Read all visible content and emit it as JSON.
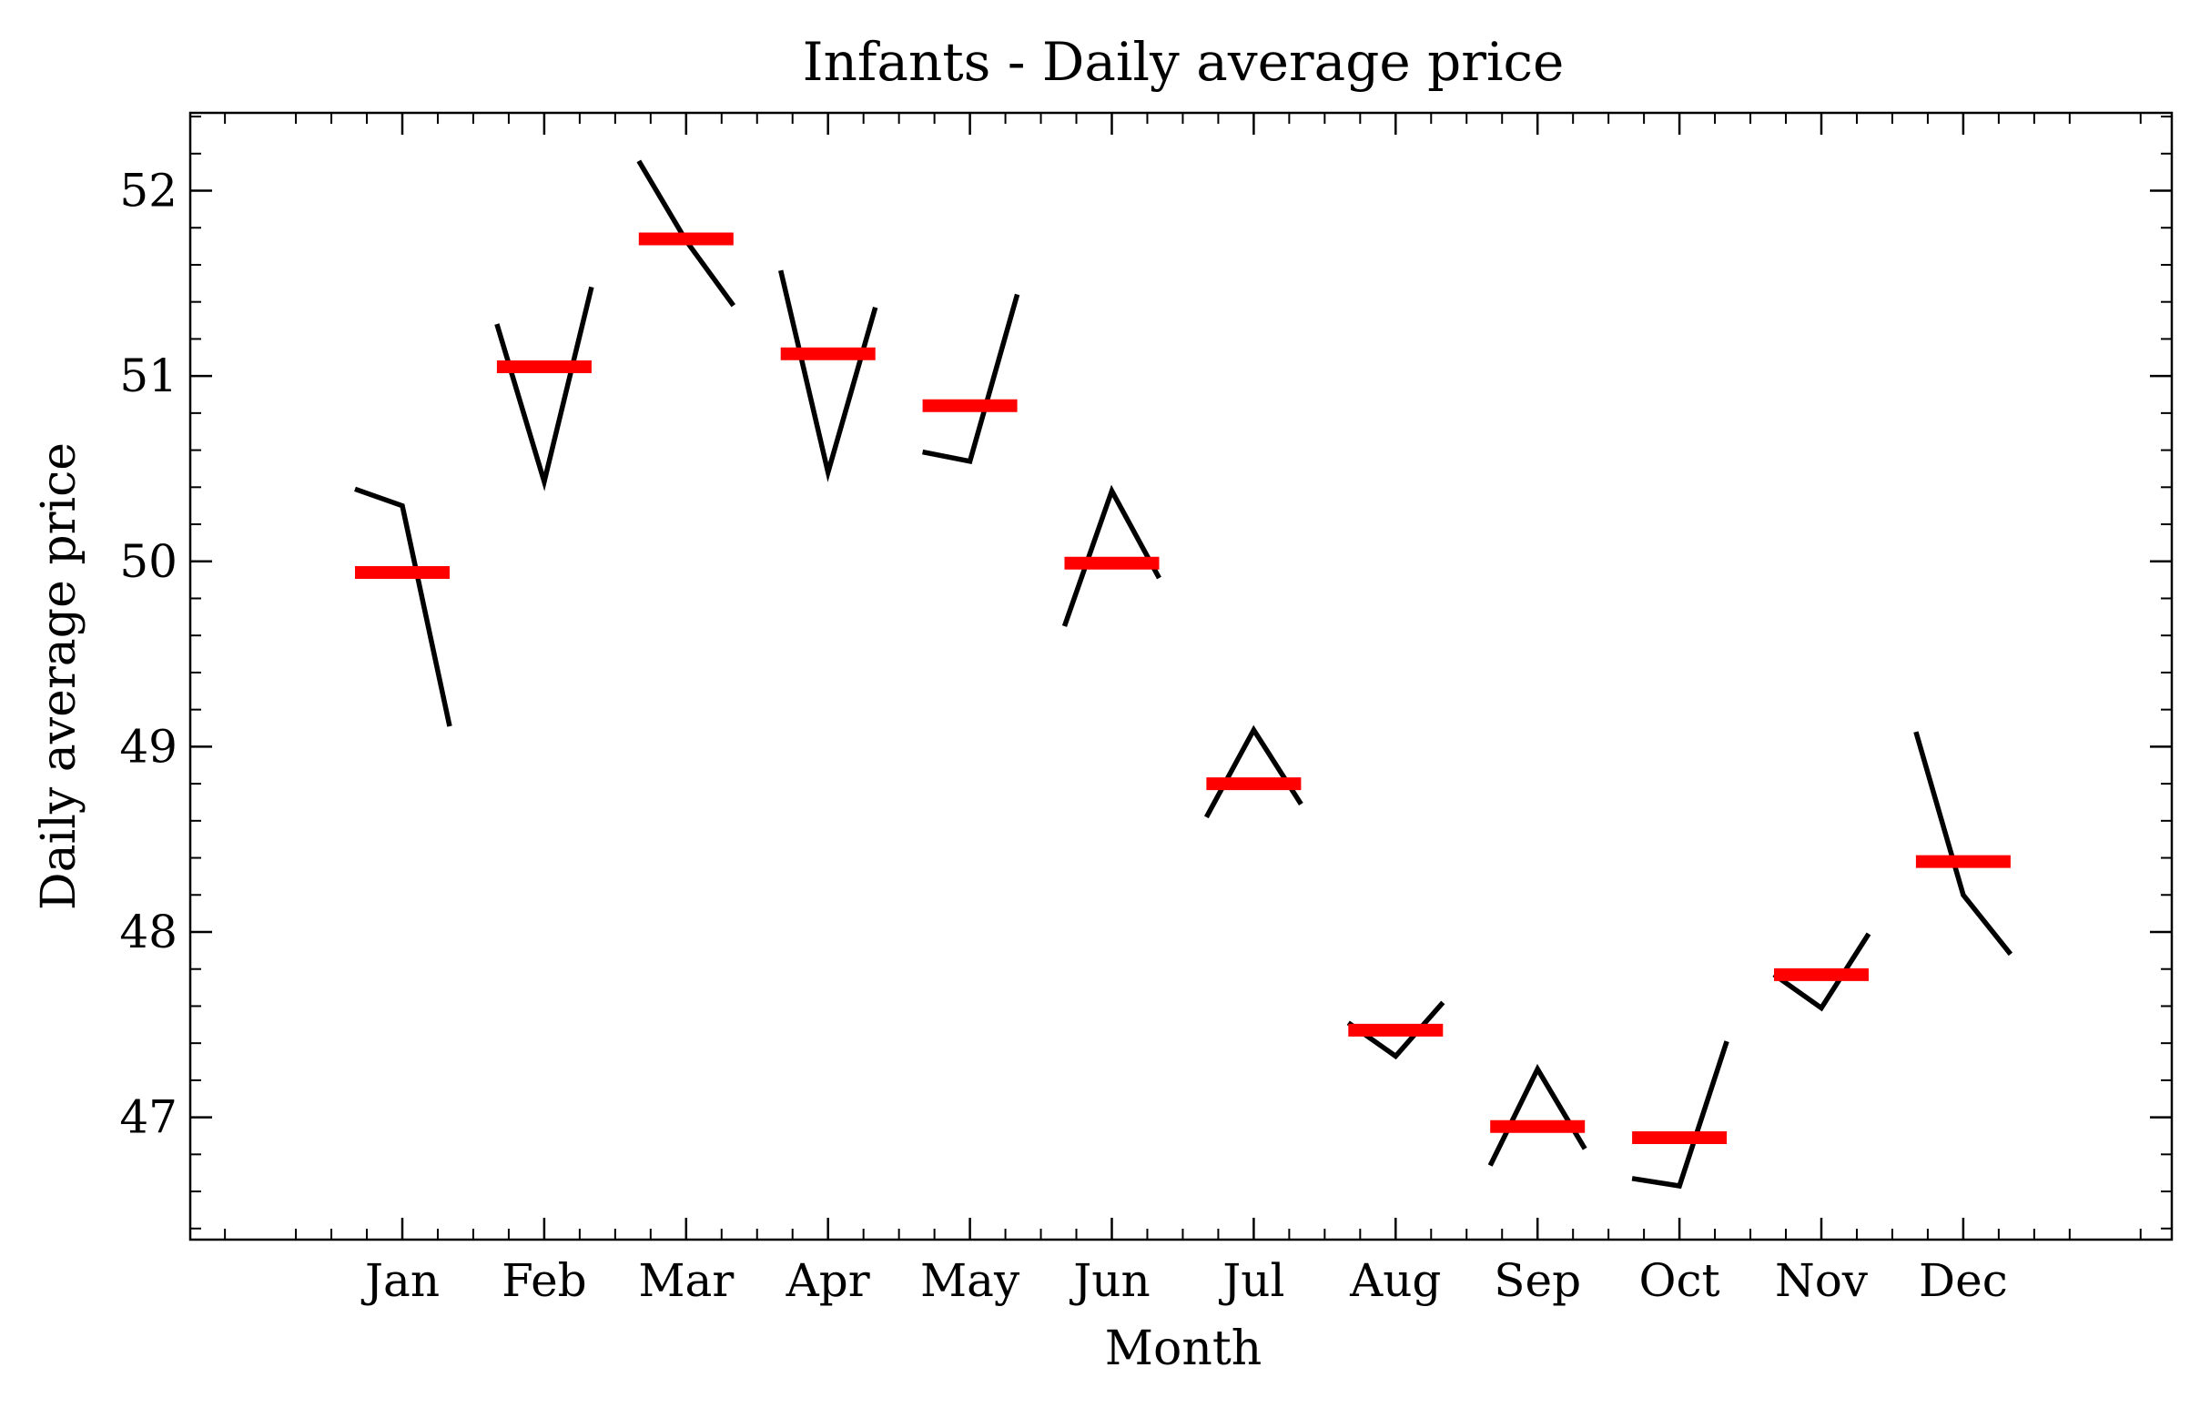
{
  "chart_data": {
    "type": "line",
    "title": "Infants - Daily average price",
    "xlabel": "Month",
    "ylabel": "Daily average price",
    "categories": [
      "Jan",
      "Feb",
      "Mar",
      "Apr",
      "May",
      "Jun",
      "Jul",
      "Aug",
      "Sep",
      "Oct",
      "Nov",
      "Dec"
    ],
    "ylim": [
      46.34,
      52.42
    ],
    "yticks": [
      47,
      48,
      49,
      50,
      51,
      52
    ],
    "grid": false,
    "legend": "none",
    "series": [
      {
        "role": "subseries",
        "color": "#000000",
        "points_per_month": [
          [
            50.39,
            50.3,
            49.11
          ],
          [
            51.28,
            50.43,
            51.48
          ],
          [
            52.16,
            51.73,
            51.38
          ],
          [
            51.57,
            50.48,
            51.37
          ],
          [
            50.59,
            50.54,
            51.44
          ],
          [
            49.65,
            50.38,
            49.91
          ],
          [
            48.62,
            49.09,
            48.69
          ],
          [
            47.51,
            47.33,
            47.62
          ],
          [
            46.74,
            47.26,
            46.83
          ],
          [
            46.67,
            46.63,
            47.41
          ],
          [
            47.77,
            47.59,
            47.99
          ],
          [
            49.08,
            48.2,
            47.88
          ]
        ]
      },
      {
        "role": "monthly-mean",
        "color": "#ff0000",
        "values": [
          49.94,
          51.05,
          51.74,
          51.12,
          50.84,
          49.99,
          48.8,
          47.47,
          46.95,
          46.89,
          47.77,
          48.38
        ]
      }
    ]
  }
}
